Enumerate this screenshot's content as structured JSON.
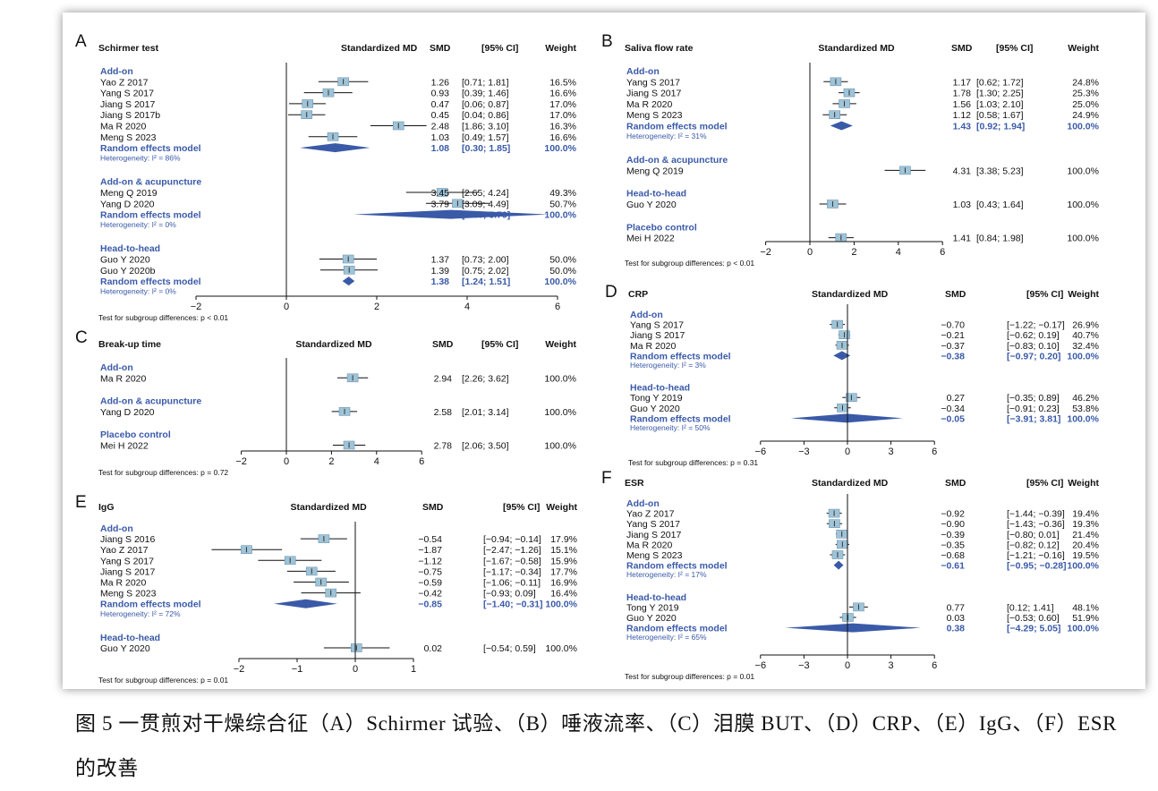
{
  "caption": "图 5 一贯煎对干燥综合征（A）Schirmer 试验、（B）唾液流率、（C）泪膜 BUT、（D）CRP、（E）IgG、（F）ESR 的改善",
  "colors": {
    "accent": "#3a5aa8",
    "diamond": "#3a5aa8",
    "box": "#9fc4d8",
    "text": "#111111"
  },
  "chart_data": [
    {
      "type": "forest",
      "letter": "A",
      "title": "Schirmer test",
      "header": {
        "effect": "Standardized MD",
        "smd": "SMD",
        "ci": "[95% CI]",
        "weight": "Weight"
      },
      "xlim": [
        -2,
        6
      ],
      "xticks": [
        "−2",
        "0",
        "2",
        "4",
        "6"
      ],
      "xtick_values": [
        -2,
        0,
        2,
        4,
        6
      ],
      "test_text": "Test for subgroup differences:",
      "test_p": "p < 0.01",
      "groups": [
        {
          "name": "Add-on",
          "studies": [
            {
              "label": "Yao Z 2017",
              "smd": 1.26,
              "lo": 0.71,
              "hi": 1.81,
              "smd_text": "1.26",
              "ci_text": "[0.71; 1.81]",
              "weight": "16.5%"
            },
            {
              "label": "Yang S 2017",
              "smd": 0.93,
              "lo": 0.39,
              "hi": 1.46,
              "smd_text": "0.93",
              "ci_text": "[0.39; 1.46]",
              "weight": "16.6%"
            },
            {
              "label": "Jiang S 2017",
              "smd": 0.47,
              "lo": 0.06,
              "hi": 0.87,
              "smd_text": "0.47",
              "ci_text": "[0.06; 0.87]",
              "weight": "17.0%"
            },
            {
              "label": "Jiang S 2017b",
              "smd": 0.45,
              "lo": 0.04,
              "hi": 0.86,
              "smd_text": "0.45",
              "ci_text": "[0.04; 0.86]",
              "weight": "17.0%"
            },
            {
              "label": "Ma R 2020",
              "smd": 2.48,
              "lo": 1.86,
              "hi": 3.1,
              "smd_text": "2.48",
              "ci_text": "[1.86; 3.10]",
              "weight": "16.3%"
            },
            {
              "label": "Meng S 2023",
              "smd": 1.03,
              "lo": 0.49,
              "hi": 1.57,
              "smd_text": "1.03",
              "ci_text": "[0.49; 1.57]",
              "weight": "16.6%"
            }
          ],
          "pooled": {
            "label": "Random effects model",
            "smd": 1.08,
            "lo": 0.3,
            "hi": 1.85,
            "smd_text": "1.08",
            "ci_text": "[0.30; 1.85]",
            "weight": "100.0%"
          },
          "heterogeneity": "Heterogeneity: I² = 86%"
        },
        {
          "name": "Add-on & acupuncture",
          "studies": [
            {
              "label": "Meng Q 2019",
              "smd": 3.45,
              "lo": 2.65,
              "hi": 4.24,
              "smd_text": "3.45",
              "ci_text": "[2.65; 4.24]",
              "weight": "49.3%"
            },
            {
              "label": "Yang D 2020",
              "smd": 3.79,
              "lo": 3.09,
              "hi": 4.49,
              "smd_text": "3.79",
              "ci_text": "[3.09; 4.49]",
              "weight": "50.7%"
            }
          ],
          "pooled": {
            "label": "Random effects model",
            "smd": 3.64,
            "lo": 1.49,
            "hi": 5.79,
            "smd_text": "3.64",
            "ci_text": "[1.49; 5.79]",
            "weight": "100.0%"
          },
          "heterogeneity": "Heterogeneity: I² = 0%"
        },
        {
          "name": "Head-to-head",
          "studies": [
            {
              "label": "Guo Y 2020",
              "smd": 1.37,
              "lo": 0.73,
              "hi": 2.0,
              "smd_text": "1.37",
              "ci_text": "[0.73; 2.00]",
              "weight": "50.0%"
            },
            {
              "label": "Guo Y 2020b",
              "smd": 1.39,
              "lo": 0.75,
              "hi": 2.02,
              "smd_text": "1.39",
              "ci_text": "[0.75; 2.02]",
              "weight": "50.0%"
            }
          ],
          "pooled": {
            "label": "Random effects model",
            "smd": 1.38,
            "lo": 1.24,
            "hi": 1.51,
            "smd_text": "1.38",
            "ci_text": "[1.24; 1.51]",
            "weight": "100.0%"
          },
          "heterogeneity": "Heterogeneity: I² = 0%"
        }
      ]
    },
    {
      "type": "forest",
      "letter": "B",
      "title": "Saliva flow rate",
      "header": {
        "effect": "Standardized MD",
        "smd": "SMD",
        "ci": "[95% CI]",
        "weight": "Weight"
      },
      "xlim": [
        -2,
        6
      ],
      "xticks": [
        "−2",
        "0",
        "2",
        "4",
        "6"
      ],
      "xtick_values": [
        -2,
        0,
        2,
        4,
        6
      ],
      "test_text": "Test for subgroup differences:",
      "test_p": "p < 0.01",
      "groups": [
        {
          "name": "Add-on",
          "studies": [
            {
              "label": "Yang S 2017",
              "smd": 1.17,
              "lo": 0.62,
              "hi": 1.72,
              "smd_text": "1.17",
              "ci_text": "[0.62; 1.72]",
              "weight": "24.8%"
            },
            {
              "label": "Jiang S 2017",
              "smd": 1.78,
              "lo": 1.3,
              "hi": 2.25,
              "smd_text": "1.78",
              "ci_text": "[1.30; 2.25]",
              "weight": "25.3%"
            },
            {
              "label": "Ma R 2020",
              "smd": 1.56,
              "lo": 1.03,
              "hi": 2.1,
              "smd_text": "1.56",
              "ci_text": "[1.03; 2.10]",
              "weight": "25.0%"
            },
            {
              "label": "Meng S 2023",
              "smd": 1.12,
              "lo": 0.58,
              "hi": 1.67,
              "smd_text": "1.12",
              "ci_text": "[0.58; 1.67]",
              "weight": "24.9%"
            }
          ],
          "pooled": {
            "label": "Random effects model",
            "smd": 1.43,
            "lo": 0.92,
            "hi": 1.94,
            "smd_text": "1.43",
            "ci_text": "[0.92; 1.94]",
            "weight": "100.0%"
          },
          "heterogeneity": "Heterogeneity: I² = 31%"
        },
        {
          "name": "Add-on & acupuncture",
          "studies": [
            {
              "label": "Meng Q 2019",
              "smd": 4.31,
              "lo": 3.38,
              "hi": 5.23,
              "smd_text": "4.31",
              "ci_text": "[3.38; 5.23]",
              "weight": "100.0%"
            }
          ]
        },
        {
          "name": "Head-to-head",
          "studies": [
            {
              "label": "Guo Y 2020",
              "smd": 1.03,
              "lo": 0.43,
              "hi": 1.64,
              "smd_text": "1.03",
              "ci_text": "[0.43; 1.64]",
              "weight": "100.0%"
            }
          ]
        },
        {
          "name": "Placebo control",
          "studies": [
            {
              "label": "Mei H 2022",
              "smd": 1.41,
              "lo": 0.84,
              "hi": 1.98,
              "smd_text": "1.41",
              "ci_text": "[0.84; 1.98]",
              "weight": "100.0%"
            }
          ]
        }
      ]
    },
    {
      "type": "forest",
      "letter": "C",
      "title": "Break-up time",
      "header": {
        "effect": "Standardized MD",
        "smd": "SMD",
        "ci": "[95% CI]",
        "weight": "Weight"
      },
      "xlim": [
        -2,
        6
      ],
      "xticks": [
        "−2",
        "0",
        "2",
        "4",
        "6"
      ],
      "xtick_values": [
        -2,
        0,
        2,
        4,
        6
      ],
      "test_text": "Test for subgroup differences:",
      "test_p": "p = 0.72",
      "groups": [
        {
          "name": "Add-on",
          "studies": [
            {
              "label": "Ma R 2020",
              "smd": 2.94,
              "lo": 2.26,
              "hi": 3.62,
              "smd_text": "2.94",
              "ci_text": "[2.26; 3.62]",
              "weight": "100.0%"
            }
          ]
        },
        {
          "name": "Add-on & acupuncture",
          "studies": [
            {
              "label": "Yang D 2020",
              "smd": 2.58,
              "lo": 2.01,
              "hi": 3.14,
              "smd_text": "2.58",
              "ci_text": "[2.01; 3.14]",
              "weight": "100.0%"
            }
          ]
        },
        {
          "name": "Placebo control",
          "studies": [
            {
              "label": "Mei H 2022",
              "smd": 2.78,
              "lo": 2.06,
              "hi": 3.5,
              "smd_text": "2.78",
              "ci_text": "[2.06; 3.50]",
              "weight": "100.0%"
            }
          ]
        }
      ]
    },
    {
      "type": "forest",
      "letter": "D",
      "title": "CRP",
      "header": {
        "effect": "Standardized MD",
        "smd": "SMD",
        "ci": "[95% CI]",
        "weight": "Weight"
      },
      "xlim": [
        -6,
        6
      ],
      "xticks": [
        "−6",
        "−3",
        "0",
        "3",
        "6"
      ],
      "xtick_values": [
        -6,
        -3,
        0,
        3,
        6
      ],
      "test_text": "Test for subgroup differences:",
      "test_p": "p = 0.31",
      "groups": [
        {
          "name": "Add-on",
          "studies": [
            {
              "label": "Yang S 2017",
              "smd": -0.7,
              "lo": -1.22,
              "hi": -0.17,
              "smd_text": "−0.70",
              "ci_text": "[−1.22; −0.17]",
              "weight": "26.9%"
            },
            {
              "label": "Jiang S 2017",
              "smd": -0.21,
              "lo": -0.62,
              "hi": 0.19,
              "smd_text": "−0.21",
              "ci_text": "[−0.62; 0.19]",
              "weight": "40.7%"
            },
            {
              "label": "Ma R 2020",
              "smd": -0.37,
              "lo": -0.83,
              "hi": 0.1,
              "smd_text": "−0.37",
              "ci_text": "[−0.83; 0.10]",
              "weight": "32.4%"
            }
          ],
          "pooled": {
            "label": "Random effects model",
            "smd": -0.38,
            "lo": -0.97,
            "hi": 0.2,
            "smd_text": "−0.38",
            "ci_text": "[−0.97; 0.20]",
            "weight": "100.0%"
          },
          "heterogeneity": "Heterogeneity: I² = 3%"
        },
        {
          "name": "Head-to-head",
          "studies": [
            {
              "label": "Tong Y 2019",
              "smd": 0.27,
              "lo": -0.35,
              "hi": 0.89,
              "smd_text": "0.27",
              "ci_text": "[−0.35; 0.89]",
              "weight": "46.2%"
            },
            {
              "label": "Guo Y 2020",
              "smd": -0.34,
              "lo": -0.91,
              "hi": 0.23,
              "smd_text": "−0.34",
              "ci_text": "[−0.91; 0.23]",
              "weight": "53.8%"
            }
          ],
          "pooled": {
            "label": "Random effects model",
            "smd": -0.05,
            "lo": -3.91,
            "hi": 3.81,
            "smd_text": "−0.05",
            "ci_text": "[−3.91; 3.81]",
            "weight": "100.0%"
          },
          "heterogeneity": "Heterogeneity: I² = 50%"
        }
      ]
    },
    {
      "type": "forest",
      "letter": "E",
      "title": "IgG",
      "header": {
        "effect": "Standardized MD",
        "smd": "SMD",
        "ci": "[95% CI]",
        "weight": "Weight"
      },
      "xlim": [
        -2,
        1
      ],
      "xticks": [
        "−2",
        "−1",
        "0",
        "1"
      ],
      "xtick_values": [
        -2,
        -1,
        0,
        1
      ],
      "test_text": "Test for subgroup differences:",
      "test_p": "p = 0.01",
      "groups": [
        {
          "name": "Add-on",
          "studies": [
            {
              "label": "Jiang S 2016",
              "smd": -0.54,
              "lo": -0.94,
              "hi": -0.14,
              "smd_text": "−0.54",
              "ci_text": "[−0.94; −0.14]",
              "weight": "17.9%"
            },
            {
              "label": "Yao Z 2017",
              "smd": -1.87,
              "lo": -2.47,
              "hi": -1.26,
              "smd_text": "−1.87",
              "ci_text": "[−2.47; −1.26]",
              "weight": "15.1%"
            },
            {
              "label": "Yang S 2017",
              "smd": -1.12,
              "lo": -1.67,
              "hi": -0.58,
              "smd_text": "−1.12",
              "ci_text": "[−1.67; −0.58]",
              "weight": "15.9%"
            },
            {
              "label": "Jiang S 2017",
              "smd": -0.75,
              "lo": -1.17,
              "hi": -0.34,
              "smd_text": "−0.75",
              "ci_text": "[−1.17; −0.34]",
              "weight": "17.7%"
            },
            {
              "label": "Ma R 2020",
              "smd": -0.59,
              "lo": -1.06,
              "hi": -0.11,
              "smd_text": "−0.59",
              "ci_text": "[−1.06; −0.11]",
              "weight": "16.9%"
            },
            {
              "label": "Meng S 2023",
              "smd": -0.42,
              "lo": -0.93,
              "hi": 0.09,
              "smd_text": "−0.42",
              "ci_text": "[−0.93; 0.09]",
              "weight": "16.4%"
            }
          ],
          "pooled": {
            "label": "Random effects model",
            "smd": -0.85,
            "lo": -1.4,
            "hi": -0.31,
            "smd_text": "−0.85",
            "ci_text": "[−1.40; −0.31]",
            "weight": "100.0%"
          },
          "heterogeneity": "Heterogeneity: I² = 72%"
        },
        {
          "name": "Head-to-head",
          "studies": [
            {
              "label": "Guo Y 2020",
              "smd": 0.02,
              "lo": -0.54,
              "hi": 0.59,
              "smd_text": "0.02",
              "ci_text": "[−0.54; 0.59]",
              "weight": "100.0%"
            }
          ]
        }
      ]
    },
    {
      "type": "forest",
      "letter": "F",
      "title": "ESR",
      "header": {
        "effect": "Standardized MD",
        "smd": "SMD",
        "ci": "[95% CI]",
        "weight": "Weight"
      },
      "xlim": [
        -6,
        6
      ],
      "xticks": [
        "−6",
        "−3",
        "0",
        "3",
        "6"
      ],
      "xtick_values": [
        -6,
        -3,
        0,
        3,
        6
      ],
      "test_text": "Test for subgroup differences:",
      "test_p": "p = 0.01",
      "groups": [
        {
          "name": "Add-on",
          "studies": [
            {
              "label": "Yao Z 2017",
              "smd": -0.92,
              "lo": -1.44,
              "hi": -0.39,
              "smd_text": "−0.92",
              "ci_text": "[−1.44; −0.39]",
              "weight": "19.4%"
            },
            {
              "label": "Yang S 2017",
              "smd": -0.9,
              "lo": -1.43,
              "hi": -0.36,
              "smd_text": "−0.90",
              "ci_text": "[−1.43; −0.36]",
              "weight": "19.3%"
            },
            {
              "label": "Jiang S 2017",
              "smd": -0.39,
              "lo": -0.8,
              "hi": 0.01,
              "smd_text": "−0.39",
              "ci_text": "[−0.80; 0.01]",
              "weight": "21.4%"
            },
            {
              "label": "Ma R 2020",
              "smd": -0.35,
              "lo": -0.82,
              "hi": 0.12,
              "smd_text": "−0.35",
              "ci_text": "[−0.82; 0.12]",
              "weight": "20.4%"
            },
            {
              "label": "Meng S 2023",
              "smd": -0.68,
              "lo": -1.21,
              "hi": -0.16,
              "smd_text": "−0.68",
              "ci_text": "[−1.21; −0.16]",
              "weight": "19.5%"
            }
          ],
          "pooled": {
            "label": "Random effects model",
            "smd": -0.61,
            "lo": -0.95,
            "hi": -0.28,
            "smd_text": "−0.61",
            "ci_text": "[−0.95; −0.28]",
            "weight": "100.0%"
          },
          "heterogeneity": "Heterogeneity: I² = 17%"
        },
        {
          "name": "Head-to-head",
          "studies": [
            {
              "label": "Tong Y 2019",
              "smd": 0.77,
              "lo": 0.12,
              "hi": 1.41,
              "smd_text": "0.77",
              "ci_text": "[0.12; 1.41]",
              "weight": "48.1%"
            },
            {
              "label": "Guo Y 2020",
              "smd": 0.03,
              "lo": -0.53,
              "hi": 0.6,
              "smd_text": "0.03",
              "ci_text": "[−0.53; 0.60]",
              "weight": "51.9%"
            }
          ],
          "pooled": {
            "label": "Random effects model",
            "smd": 0.38,
            "lo": -4.29,
            "hi": 5.05,
            "smd_text": "0.38",
            "ci_text": "[−4.29; 5.05]",
            "weight": "100.0%"
          },
          "heterogeneity": "Heterogeneity: I² = 65%"
        }
      ]
    }
  ]
}
